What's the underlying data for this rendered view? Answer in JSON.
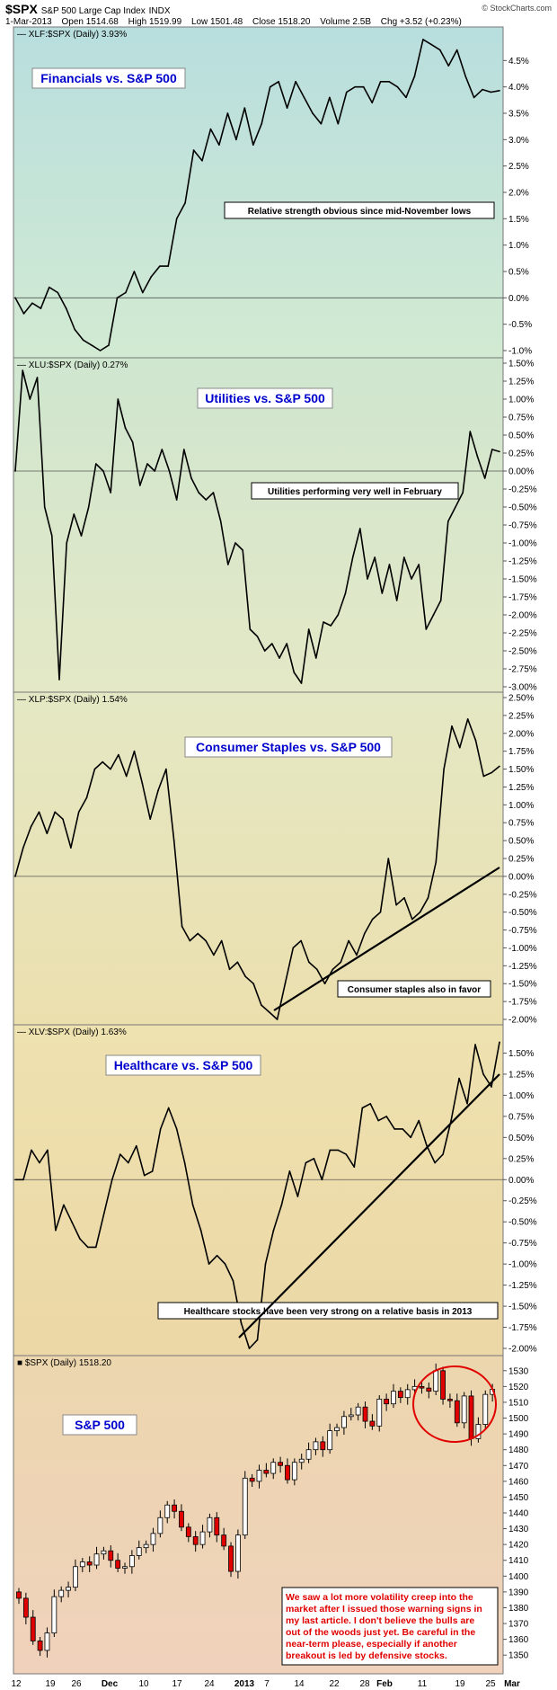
{
  "header": {
    "symbol": "$SPX",
    "name": "S&P 500 Large Cap Index",
    "exchange": "INDX",
    "date": "1-Mar-2013",
    "open": "Open 1514.68",
    "high": "High 1519.99",
    "low": "Low 1501.48",
    "close": "Close 1518.20",
    "volume": "Volume 2.5B",
    "change": "Chg +3.52 (+0.23%)",
    "credit": "© StockCharts.com"
  },
  "x_axis": {
    "labels": [
      "12",
      "19",
      "26",
      "Dec",
      "10",
      "17",
      "24",
      "2013",
      "7",
      "14",
      "22",
      "28",
      "Feb",
      "11",
      "19",
      "25",
      "Mar"
    ],
    "bold": [
      "Dec",
      "2013",
      "Feb",
      "Mar"
    ]
  },
  "colors": {
    "up_candle": "#ffffff",
    "down_candle": "#e00000",
    "ellipse": "#e00000",
    "annotation_red": "#e00000",
    "title_blue": "#0000cc"
  },
  "chart_data": [
    {
      "type": "line",
      "legend": "XLF:$SPX (Daily) 3.93%",
      "title": "Financials vs. S&P 500",
      "annotation": "Relative strength obvious since mid-November lows",
      "ylim": [
        -1.0,
        5.0
      ],
      "ticks": [
        "-1.0%",
        "-0.5%",
        "0.0%",
        "0.5%",
        "1.0%",
        "1.5%",
        "2.0%",
        "2.5%",
        "3.0%",
        "3.5%",
        "4.0%",
        "4.5%"
      ],
      "tick_values": [
        -1.0,
        -0.5,
        0.0,
        0.5,
        1.0,
        1.5,
        2.0,
        2.5,
        3.0,
        3.5,
        4.0,
        4.5
      ],
      "values": [
        0.0,
        -0.3,
        -0.1,
        -0.2,
        0.2,
        0.1,
        -0.2,
        -0.6,
        -0.8,
        -0.9,
        -1.0,
        -0.9,
        0.0,
        0.1,
        0.5,
        0.1,
        0.4,
        0.6,
        0.6,
        1.5,
        1.8,
        2.8,
        2.6,
        3.2,
        2.9,
        3.5,
        3.0,
        3.6,
        2.9,
        3.3,
        4.0,
        4.1,
        3.6,
        4.1,
        3.8,
        3.5,
        3.3,
        3.8,
        3.3,
        3.9,
        4.0,
        4.0,
        3.7,
        4.1,
        4.1,
        4.0,
        3.8,
        4.2,
        4.9,
        4.8,
        4.7,
        4.4,
        4.7,
        4.2,
        3.8,
        3.95,
        3.9,
        3.93
      ]
    },
    {
      "type": "line",
      "legend": "XLU:$SPX (Daily) 0.27%",
      "title": "Utilities vs. S&P 500",
      "annotation": "Utilities performing very well in February",
      "ylim": [
        -3.0,
        1.5
      ],
      "ticks": [
        "-3.00%",
        "-2.75%",
        "-2.50%",
        "-2.25%",
        "-2.00%",
        "-1.75%",
        "-1.50%",
        "-1.25%",
        "-1.00%",
        "-0.75%",
        "-0.50%",
        "-0.25%",
        "0.00%",
        "0.25%",
        "0.50%",
        "0.75%",
        "1.00%",
        "1.25%",
        "1.50%"
      ],
      "tick_values": [
        -3.0,
        -2.75,
        -2.5,
        -2.25,
        -2.0,
        -1.75,
        -1.5,
        -1.25,
        -1.0,
        -0.75,
        -0.5,
        -0.25,
        0.0,
        0.25,
        0.5,
        0.75,
        1.0,
        1.25,
        1.5
      ],
      "values": [
        0.0,
        1.4,
        1.0,
        1.3,
        -0.5,
        -0.9,
        -2.9,
        -1.0,
        -0.6,
        -0.9,
        -0.5,
        0.1,
        0.0,
        -0.3,
        1.0,
        0.6,
        0.4,
        -0.2,
        0.1,
        0.0,
        0.3,
        0.0,
        -0.4,
        0.3,
        -0.1,
        -0.3,
        -0.4,
        -0.3,
        -0.7,
        -1.3,
        -1.0,
        -1.1,
        -2.2,
        -2.3,
        -2.5,
        -2.4,
        -2.6,
        -2.4,
        -2.8,
        -2.95,
        -2.2,
        -2.6,
        -2.1,
        -2.15,
        -2.0,
        -1.7,
        -1.2,
        -0.8,
        -1.5,
        -1.2,
        -1.7,
        -1.3,
        -1.8,
        -1.2,
        -1.5,
        -1.3,
        -2.2,
        -2.0,
        -1.8,
        -0.7,
        -0.5,
        -0.3,
        0.55,
        0.2,
        -0.1,
        0.3,
        0.27
      ]
    },
    {
      "type": "line",
      "legend": "XLP:$SPX (Daily) 1.54%",
      "title": "Consumer Staples vs. S&P 500",
      "annotation": "Consumer staples also in favor",
      "ylim": [
        -2.0,
        2.5
      ],
      "ticks": [
        "-2.00%",
        "-1.75%",
        "-1.50%",
        "-1.25%",
        "-1.00%",
        "-0.75%",
        "-0.50%",
        "-0.25%",
        "0.00%",
        "0.25%",
        "0.50%",
        "0.75%",
        "1.00%",
        "1.25%",
        "1.50%",
        "1.75%",
        "2.00%",
        "2.25%",
        "2.50%"
      ],
      "tick_values": [
        -2.0,
        -1.75,
        -1.5,
        -1.25,
        -1.0,
        -0.75,
        -0.5,
        -0.25,
        0.0,
        0.25,
        0.5,
        0.75,
        1.0,
        1.25,
        1.5,
        1.75,
        2.0,
        2.25,
        2.5
      ],
      "values": [
        0.0,
        0.4,
        0.7,
        0.9,
        0.6,
        0.9,
        0.8,
        0.4,
        0.9,
        1.1,
        1.5,
        1.6,
        1.5,
        1.7,
        1.4,
        1.75,
        1.3,
        0.8,
        1.2,
        1.5,
        0.5,
        -0.7,
        -0.9,
        -0.8,
        -0.9,
        -1.1,
        -0.9,
        -1.3,
        -1.2,
        -1.4,
        -1.5,
        -1.8,
        -1.9,
        -2.0,
        -1.5,
        -1.0,
        -0.9,
        -1.2,
        -1.3,
        -1.5,
        -1.3,
        -1.2,
        -0.9,
        -1.1,
        -0.8,
        -0.6,
        -0.5,
        0.25,
        -0.4,
        -0.3,
        -0.6,
        -0.5,
        -0.3,
        0.2,
        1.5,
        2.1,
        1.8,
        2.2,
        1.9,
        1.4,
        1.45,
        1.54
      ]
    },
    {
      "type": "line",
      "legend": "XLV:$SPX (Daily) 1.63%",
      "title": "Healthcare vs. S&P 500",
      "annotation": "Healthcare stocks have been very strong on a relative basis in 2013",
      "ylim": [
        -2.0,
        1.75
      ],
      "ticks": [
        "-2.00%",
        "-1.75%",
        "-1.50%",
        "-1.25%",
        "-1.00%",
        "-0.75%",
        "-0.50%",
        "-0.25%",
        "0.00%",
        "0.25%",
        "0.50%",
        "0.75%",
        "1.00%",
        "1.25%",
        "1.50%"
      ],
      "tick_values": [
        -2.0,
        -1.75,
        -1.5,
        -1.25,
        -1.0,
        -0.75,
        -0.5,
        -0.25,
        0.0,
        0.25,
        0.5,
        0.75,
        1.0,
        1.25,
        1.5
      ],
      "values": [
        0.0,
        0.0,
        0.35,
        0.2,
        0.35,
        -0.6,
        -0.3,
        -0.5,
        -0.7,
        -0.8,
        -0.8,
        -0.4,
        0.0,
        0.3,
        0.2,
        0.4,
        0.05,
        0.1,
        0.6,
        0.85,
        0.6,
        0.2,
        -0.3,
        -0.6,
        -1.0,
        -0.9,
        -1.0,
        -1.2,
        -1.7,
        -2.0,
        -1.9,
        -1.0,
        -0.6,
        -0.3,
        0.1,
        -0.2,
        0.2,
        0.25,
        0.0,
        0.35,
        0.35,
        0.3,
        0.15,
        0.85,
        0.9,
        0.7,
        0.75,
        0.6,
        0.6,
        0.5,
        0.7,
        0.4,
        0.2,
        0.3,
        0.7,
        1.2,
        0.9,
        1.6,
        1.25,
        1.1,
        1.63
      ]
    },
    {
      "type": "candlestick",
      "legend": "$SPX (Daily) 1518.20",
      "title": "S&P 500",
      "annotation": "We saw a lot more volatility creep into the market after I issued those warning signs in my last article.  I don't believe the bulls are out of the woods just yet.  Be careful in the near-term please, especially if another breakout is led by defensive stocks.",
      "ylim": [
        1345,
        1535
      ],
      "ticks": [
        "1350",
        "1360",
        "1370",
        "1380",
        "1390",
        "1400",
        "1410",
        "1420",
        "1430",
        "1440",
        "1450",
        "1460",
        "1470",
        "1480",
        "1490",
        "1500",
        "1510",
        "1520",
        "1530"
      ],
      "tick_values": [
        1350,
        1360,
        1370,
        1380,
        1390,
        1400,
        1410,
        1420,
        1430,
        1440,
        1450,
        1460,
        1470,
        1480,
        1490,
        1500,
        1510,
        1520,
        1530
      ],
      "close_values": [
        1386,
        1374,
        1359,
        1353,
        1364,
        1387,
        1391,
        1393,
        1406,
        1409,
        1407,
        1414,
        1416,
        1410,
        1405,
        1406,
        1413,
        1418,
        1420,
        1427,
        1437,
        1445,
        1441,
        1431,
        1425,
        1420,
        1428,
        1437,
        1426,
        1419,
        1403,
        1426,
        1462,
        1460,
        1467,
        1465,
        1472,
        1470,
        1461,
        1472,
        1474,
        1480,
        1485,
        1480,
        1492,
        1494,
        1501,
        1502,
        1507,
        1498,
        1495,
        1512,
        1509,
        1517,
        1513,
        1518,
        1520,
        1519,
        1517,
        1530,
        1512,
        1511,
        1497,
        1514,
        1487,
        1496,
        1515,
        1518.2
      ]
    }
  ]
}
